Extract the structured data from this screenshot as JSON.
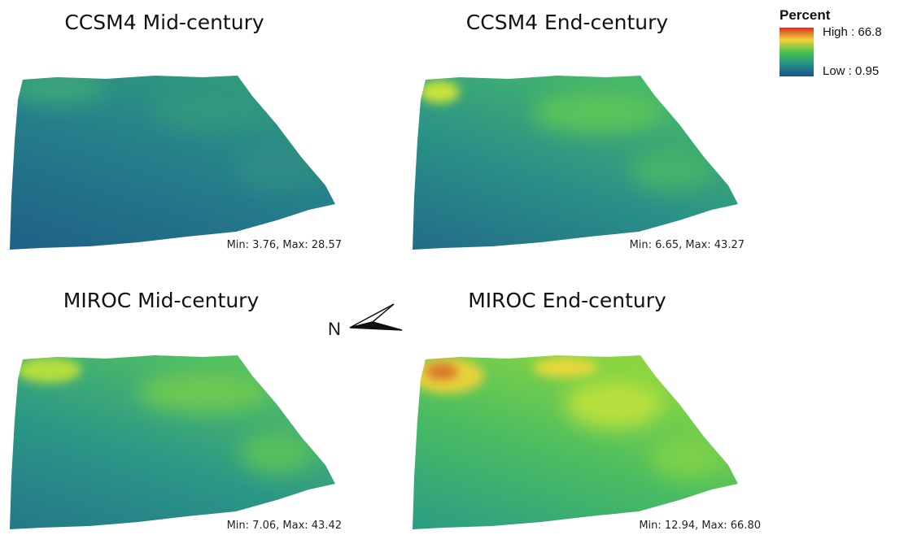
{
  "panels": [
    {
      "title": "CCSM4 Mid-century",
      "stats": "Min: 3.76, Max: 28.57"
    },
    {
      "title": "CCSM4 End-century",
      "stats": "Min: 6.65, Max: 43.27"
    },
    {
      "title": "MIROC Mid-century",
      "stats": "Min: 7.06, Max: 43.42"
    },
    {
      "title": "MIROC End-century",
      "stats": "Min: 12.94, Max: 66.80"
    }
  ],
  "legend": {
    "title": "Percent",
    "high": "High : 66.8",
    "low": "Low : 0.95"
  },
  "north_arrow": {
    "label": "N"
  }
}
